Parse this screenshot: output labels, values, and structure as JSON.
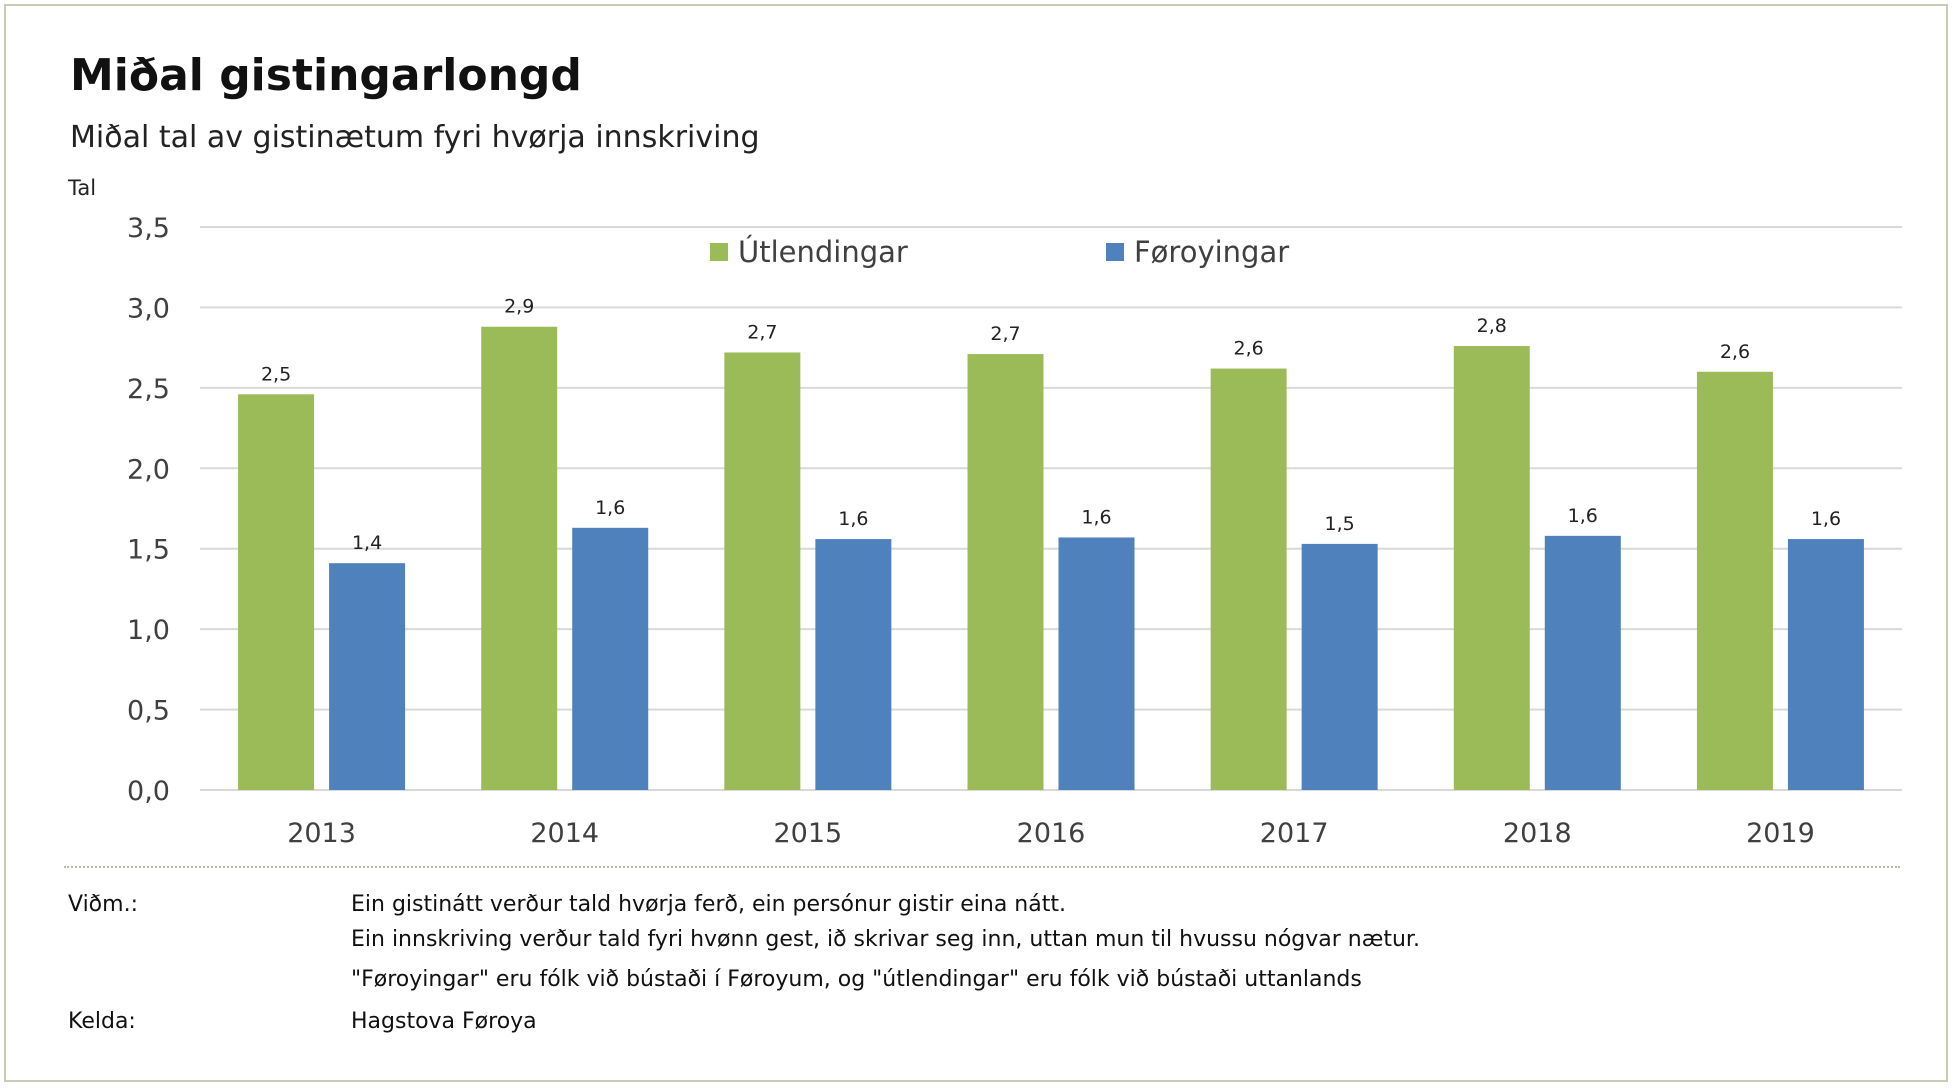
{
  "title": "Miðal gistingarlongd",
  "subtitle": "Miðal tal av gistinætum fyri hvørja innskriving",
  "unit_label": "Tal",
  "colors": {
    "Útlendingar": "#9bbb59",
    "Føroyingar": "#4f81bd",
    "grid": "#d9d9d9",
    "axis_text": "#404040"
  },
  "chart_data": {
    "type": "bar",
    "categories": [
      "2013",
      "2014",
      "2015",
      "2016",
      "2017",
      "2018",
      "2019"
    ],
    "series": [
      {
        "name": "Útlendingar",
        "values": [
          2.46,
          2.88,
          2.72,
          2.71,
          2.62,
          2.76,
          2.6
        ],
        "labels": [
          "2,5",
          "2,9",
          "2,7",
          "2,7",
          "2,6",
          "2,8",
          "2,6"
        ]
      },
      {
        "name": "Føroyingar",
        "values": [
          1.41,
          1.63,
          1.56,
          1.57,
          1.53,
          1.58,
          1.56
        ],
        "labels": [
          "1,4",
          "1,6",
          "1,6",
          "1,6",
          "1,5",
          "1,6",
          "1,6"
        ]
      }
    ],
    "ylim": [
      0,
      3.5
    ],
    "yticks": [
      0,
      0.5,
      1,
      1.5,
      2,
      2.5,
      3,
      3.5
    ],
    "ytick_labels": [
      "0,0",
      "0,5",
      "1,0",
      "1,5",
      "2,0",
      "2,5",
      "3,0",
      "3,5"
    ],
    "xlabel": "",
    "ylabel": "Tal",
    "grid": true,
    "legend": "top-center"
  },
  "notes": {
    "label": "Viðm.:",
    "lines": [
      "Ein gistinátt verður tald hvørja ferð, ein persónur gistir eina nátt.",
      "Ein innskriving verður tald fyri hvønn gest, ið skrivar seg inn, uttan mun til hvussu nógvar nætur.",
      "\"Føroyingar\" eru fólk við bústaði í Føroyum, og \"útlendingar\" eru fólk við bústaði uttanlands"
    ]
  },
  "source": {
    "label": "Kelda:",
    "text": "Hagstova Føroya"
  }
}
